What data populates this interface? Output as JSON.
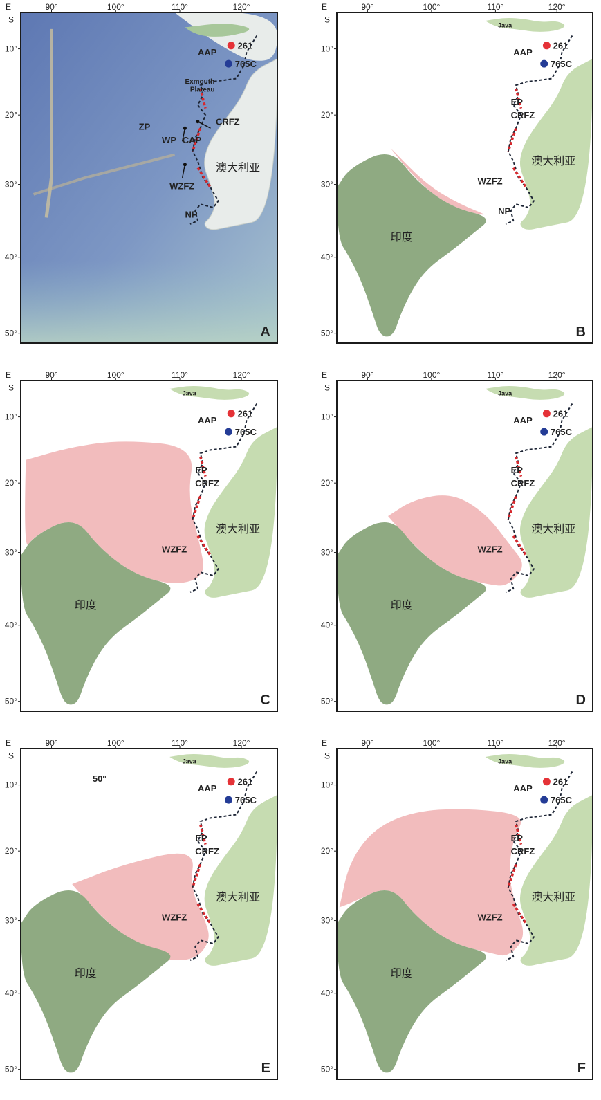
{
  "colors": {
    "ocean_deep": "#6f86b8",
    "ocean_shelf": "#b9d3d8",
    "land_map": "#e8ecea",
    "australia": "#c6dcb1",
    "india": "#8faa82",
    "pink": "#f2bcbd",
    "dashed": "#1d2535",
    "red_segment": "#d6282d",
    "site_261": "#e53237",
    "site_765c": "#243c96"
  },
  "axes": {
    "corner_label": "E",
    "lat_letter": "S",
    "lon_ticks": [
      "90°",
      "100°",
      "110°",
      "120°"
    ],
    "lat_ticks": [
      "10°",
      "20°",
      "30°",
      "40°",
      "50°"
    ]
  },
  "sites": {
    "site_261": "261",
    "site_765c": "765C"
  },
  "features": {
    "aap": "AAP",
    "ep": "EP",
    "crfz": "CRFZ",
    "wzfz": "WZFZ",
    "np": "NP",
    "zp": "ZP",
    "wp": "WP",
    "cap": "CAP",
    "exmouth_line1": "Exmouth",
    "exmouth_line2": "Plateau",
    "java": "Java",
    "australia": "澳大利亚",
    "india": "印度",
    "e_extra": "50°"
  },
  "panels": [
    {
      "letter": "A"
    },
    {
      "letter": "B"
    },
    {
      "letter": "C"
    },
    {
      "letter": "D"
    },
    {
      "letter": "E"
    },
    {
      "letter": "F"
    }
  ]
}
